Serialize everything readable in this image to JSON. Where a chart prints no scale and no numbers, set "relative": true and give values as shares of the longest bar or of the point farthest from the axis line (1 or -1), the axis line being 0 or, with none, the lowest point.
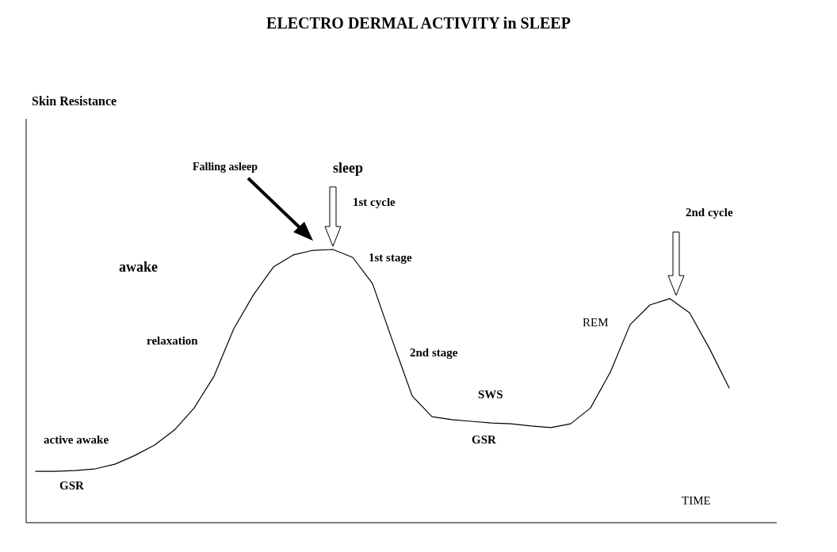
{
  "chart_data": {
    "type": "line",
    "title": "ELECTRO DERMAL ACTIVITY in SLEEP",
    "xlabel": "TIME",
    "relative": true,
    "color": "#000000",
    "categories": [
      null,
      null,
      null,
      null,
      null,
      null,
      null,
      null,
      null,
      null,
      null,
      null,
      null,
      null,
      null,
      null,
      null,
      null,
      null,
      null,
      null,
      null,
      null,
      null,
      null,
      null,
      null,
      null,
      null,
      null,
      null,
      null,
      null,
      null,
      null,
      null
    ],
    "values": [
      0.188,
      0.188,
      0.191,
      0.197,
      0.214,
      0.246,
      0.284,
      0.339,
      0.42,
      0.536,
      0.71,
      0.835,
      0.936,
      0.98,
      0.997,
      1,
      0.971,
      0.875,
      0.667,
      0.464,
      0.388,
      0.377,
      0.371,
      0.365,
      0.362,
      0.354,
      0.348,
      0.362,
      0.42,
      0.551,
      0.725,
      0.797,
      0.82,
      0.768,
      0.638,
      0.493
    ],
    "annotations": [
      "awake",
      "relaxation",
      "active awake",
      "GSR",
      "Falling asleep",
      "sleep",
      "1st cycle",
      "1st stage",
      "2nd stage",
      "SWS",
      "GSR",
      "REM",
      "2nd cycle",
      "Skin Resistance"
    ],
    "marker": "none",
    "line_style": "solid"
  }
}
